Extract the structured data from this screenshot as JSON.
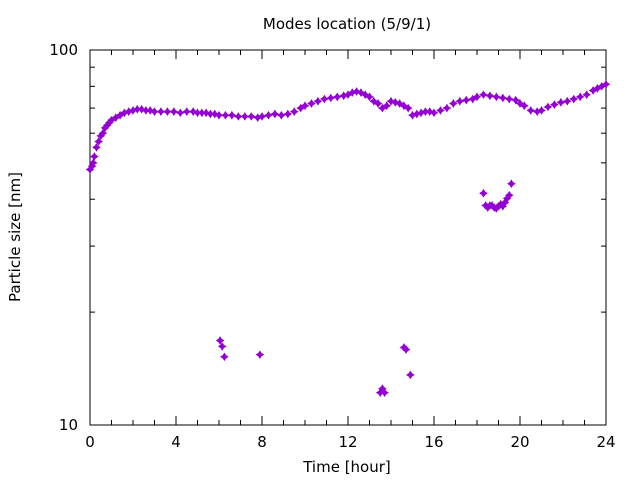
{
  "chart_data": {
    "type": "scatter",
    "title": "Modes location (5/9/1)",
    "xlabel": "Time [hour]",
    "ylabel": "Particle size [nm]",
    "xlim": [
      0,
      24
    ],
    "ylim": [
      10,
      100
    ],
    "yscale": "log",
    "grid": false,
    "legend": "none",
    "x_ticks": [
      0,
      4,
      8,
      12,
      16,
      20,
      24
    ],
    "x_tick_labels": [
      "0",
      "4",
      "8",
      "12",
      "16",
      "20",
      "24"
    ],
    "y_tick_labels": [
      {
        "value": 10,
        "label": "10"
      },
      {
        "value": 100,
        "label": "100"
      }
    ],
    "marker_color": "#9400D3",
    "series": [
      {
        "x": [
          0.0,
          0.1,
          0.15,
          0.2,
          0.3,
          0.4,
          0.5,
          0.6,
          0.7,
          0.8,
          0.9,
          1.0,
          1.2,
          1.4,
          1.6,
          1.8,
          2.0,
          2.2,
          2.4,
          2.6,
          2.8,
          3.0,
          3.3,
          3.6,
          3.9,
          4.2,
          4.5,
          4.8,
          5.0,
          5.2,
          5.4,
          5.6,
          5.8,
          6.0,
          6.3,
          6.6,
          6.9,
          7.2,
          7.5,
          7.8,
          8.0,
          8.3,
          8.6,
          8.9,
          9.2,
          9.5,
          9.8,
          10.0,
          10.3,
          10.6,
          10.9,
          11.2,
          11.5,
          11.8,
          12.0,
          12.2,
          12.4,
          12.6,
          12.8,
          13.0,
          13.2,
          13.4,
          13.6,
          13.8,
          14.0,
          14.2,
          14.4,
          14.6,
          14.8,
          15.0,
          15.2,
          15.4,
          15.6,
          15.8,
          16.0,
          16.3,
          16.6,
          16.9,
          17.2,
          17.5,
          17.8,
          18.0,
          18.3,
          18.6,
          18.9,
          19.2,
          19.5,
          19.8,
          20.0,
          20.2,
          20.5,
          20.8,
          21.0,
          21.3,
          21.6,
          21.9,
          22.2,
          22.5,
          22.8,
          23.1,
          23.4,
          23.6,
          23.8,
          24.0
        ],
        "y": [
          48,
          49,
          50,
          52,
          55,
          57,
          59,
          60,
          62,
          63,
          64,
          65,
          66,
          67,
          68,
          68.5,
          69,
          69.5,
          69.5,
          69,
          69,
          68.5,
          68.5,
          68.5,
          68.5,
          68,
          68.5,
          68.5,
          68,
          68,
          68,
          67.5,
          67.5,
          67,
          67,
          67,
          66.5,
          66.5,
          66.5,
          66,
          66.5,
          67,
          67.5,
          67,
          67.5,
          68.5,
          70,
          71,
          72,
          73,
          74,
          74.5,
          75,
          75.5,
          76,
          77,
          77.5,
          77,
          76,
          75,
          73,
          72,
          70,
          71,
          73,
          72.5,
          72,
          71,
          70,
          67,
          67.5,
          68,
          68.5,
          68.5,
          68,
          69,
          70,
          72,
          73,
          73.5,
          74,
          75,
          76,
          75.5,
          75,
          74.5,
          74,
          73.5,
          72,
          71,
          69,
          68.5,
          69,
          70.5,
          71.5,
          72.5,
          73,
          74,
          75,
          76,
          78,
          79,
          80,
          81
        ]
      },
      {
        "x": [
          18.3,
          18.4,
          18.5,
          18.6,
          18.7,
          18.8,
          18.9,
          19.0,
          19.1,
          19.2,
          19.3,
          19.4,
          19.5,
          19.6
        ],
        "y": [
          41.5,
          38.5,
          38,
          38.5,
          38.5,
          38,
          37.8,
          38.3,
          38.8,
          38.3,
          39.2,
          40.2,
          41,
          44
        ]
      },
      {
        "x": [
          6.05,
          6.15,
          6.25,
          7.9,
          13.5,
          13.6,
          13.7,
          14.6,
          14.7,
          14.9
        ],
        "y": [
          16.8,
          16.2,
          15.2,
          15.4,
          12.2,
          12.5,
          12.2,
          16.1,
          15.9,
          13.6
        ]
      }
    ]
  }
}
